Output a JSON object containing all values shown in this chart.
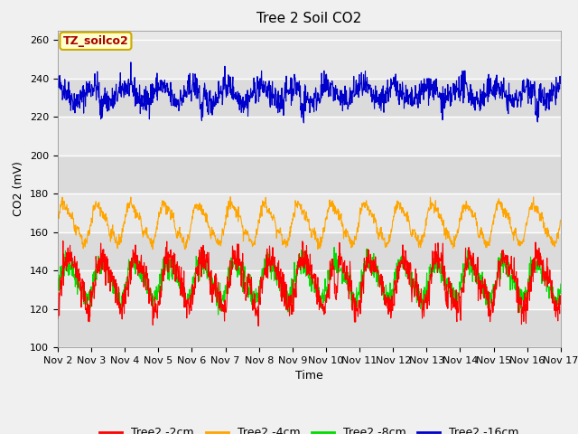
{
  "title": "Tree 2 Soil CO2",
  "xlabel": "Time",
  "ylabel": "CO2 (mV)",
  "ylim": [
    100,
    265
  ],
  "yticks": [
    100,
    120,
    140,
    160,
    180,
    200,
    220,
    240,
    260
  ],
  "xlim_days": [
    0,
    15
  ],
  "x_tick_labels": [
    "Nov 2",
    "Nov 3",
    "Nov 4",
    "Nov 5",
    "Nov 6",
    "Nov 7",
    "Nov 8",
    "Nov 9",
    "Nov 10",
    "Nov 11",
    "Nov 12",
    "Nov 13",
    "Nov 14",
    "Nov 15",
    "Nov 16",
    "Nov 17"
  ],
  "legend_label": "TZ_soilco2",
  "series_labels": [
    "Tree2 -2cm",
    "Tree2 -4cm",
    "Tree2 -8cm",
    "Tree2 -16cm"
  ],
  "series_colors": [
    "#ff0000",
    "#ffa500",
    "#00dd00",
    "#0000cc"
  ],
  "bg_color": "#f0f0f0",
  "plot_bg_color": "#e8e8e8",
  "annotation_bg": "#ffffcc",
  "annotation_border": "#ccaa00",
  "annotation_text_color": "#aa0000",
  "title_fontsize": 11,
  "label_fontsize": 9,
  "tick_fontsize": 8,
  "legend_fontsize": 9
}
